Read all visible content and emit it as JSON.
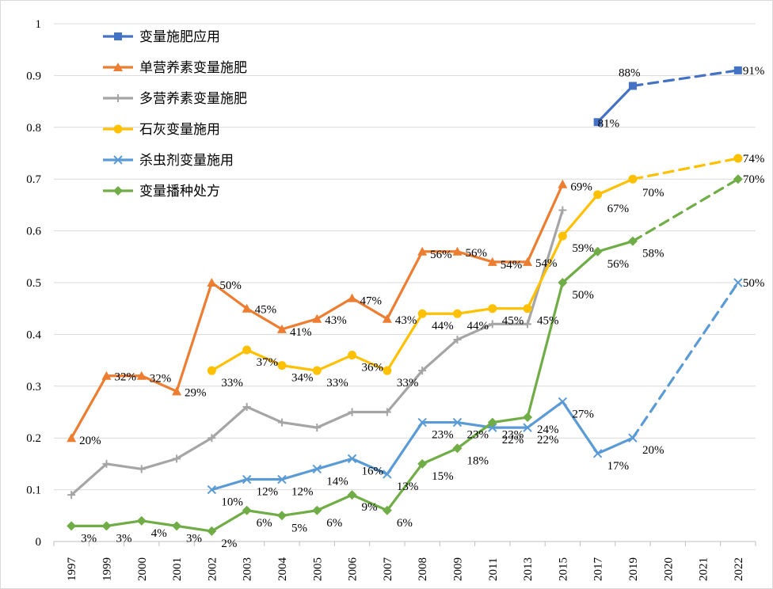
{
  "chart_data": {
    "type": "line",
    "categories": [
      "1997",
      "1999",
      "2000",
      "2001",
      "2002",
      "2003",
      "2004",
      "2005",
      "2006",
      "2007",
      "2008",
      "2009",
      "2011",
      "2013",
      "2015",
      "2017",
      "2019",
      "2020",
      "2021",
      "2022"
    ],
    "ylim": [
      0,
      1
    ],
    "yticks": [
      "0",
      "0.1",
      "0.2",
      "0.3",
      "0.4",
      "0.5",
      "0.6",
      "0.7",
      "0.8",
      "0.9",
      "1"
    ],
    "grid": "horizontal",
    "legend_position": "top-left",
    "series": [
      {
        "name": "变量施肥应用",
        "color": "#4472C4",
        "marker": "square",
        "values": [
          null,
          null,
          null,
          null,
          null,
          null,
          null,
          null,
          null,
          null,
          null,
          null,
          null,
          null,
          null,
          0.81,
          0.88,
          null,
          null,
          0.91
        ],
        "labels": [
          null,
          null,
          null,
          null,
          null,
          null,
          null,
          null,
          null,
          null,
          null,
          null,
          null,
          null,
          null,
          "81%",
          "88%",
          null,
          null,
          "91%"
        ],
        "dashed_from": 16
      },
      {
        "name": "单营养素变量施肥",
        "color": "#ED7D31",
        "marker": "triangle",
        "values": [
          0.2,
          0.32,
          0.32,
          0.29,
          0.5,
          0.45,
          0.41,
          0.43,
          0.47,
          0.43,
          0.56,
          0.56,
          0.54,
          0.54,
          0.69,
          null,
          null,
          null,
          null,
          null
        ],
        "labels": [
          "20%",
          "32%",
          "32%",
          "29%",
          "50%",
          "45%",
          "41%",
          "43%",
          "47%",
          "43%",
          "56%",
          "56%",
          "54%",
          "54%",
          "69%",
          null,
          null,
          null,
          null,
          null
        ],
        "dashed_from": null
      },
      {
        "name": "多营养素变量施肥",
        "color": "#A5A5A5",
        "marker": "plus",
        "values": [
          0.09,
          0.15,
          0.14,
          0.16,
          0.2,
          0.26,
          0.23,
          0.22,
          0.25,
          0.25,
          0.33,
          0.39,
          0.42,
          0.42,
          0.64,
          null,
          null,
          null,
          null,
          null
        ],
        "labels": [
          null,
          null,
          null,
          null,
          null,
          null,
          null,
          null,
          null,
          null,
          null,
          null,
          null,
          null,
          null,
          null,
          null,
          null,
          null,
          null
        ],
        "dashed_from": null
      },
      {
        "name": "石灰变量施用",
        "color": "#FFC000",
        "marker": "circle",
        "values": [
          null,
          null,
          null,
          null,
          0.33,
          0.37,
          0.34,
          0.33,
          0.36,
          0.33,
          0.44,
          0.44,
          0.45,
          0.45,
          0.59,
          0.67,
          0.7,
          null,
          null,
          0.74
        ],
        "labels": [
          null,
          null,
          null,
          null,
          "33%",
          "37%",
          "34%",
          "33%",
          "36%",
          "33%",
          "44%",
          "44%",
          "45%",
          "45%",
          "59%",
          "67%",
          "70%",
          null,
          null,
          "74%"
        ],
        "dashed_from": 16
      },
      {
        "name": "杀虫剂变量施用",
        "color": "#5B9BD5",
        "marker": "x",
        "values": [
          null,
          null,
          null,
          null,
          0.1,
          0.12,
          0.12,
          0.14,
          0.16,
          0.13,
          0.23,
          0.23,
          0.22,
          0.22,
          0.27,
          0.17,
          0.2,
          null,
          null,
          0.5
        ],
        "labels": [
          null,
          null,
          null,
          null,
          "10%",
          "12%",
          "12%",
          "14%",
          "16%",
          "13%",
          "23%",
          "23%",
          "22%",
          "22%",
          "27%",
          "17%",
          "20%",
          null,
          null,
          "50%"
        ],
        "dashed_from": 16
      },
      {
        "name": "变量播种处方",
        "color": "#70AD47",
        "marker": "diamond",
        "values": [
          0.03,
          0.03,
          0.04,
          0.03,
          0.02,
          0.06,
          0.05,
          0.06,
          0.09,
          0.06,
          0.15,
          0.18,
          0.23,
          0.24,
          0.5,
          0.56,
          0.58,
          null,
          null,
          0.7
        ],
        "labels": [
          "3%",
          "3%",
          "4%",
          "3%",
          "2%",
          "6%",
          "5%",
          "6%",
          "9%",
          "6%",
          "15%",
          "18%",
          "23%",
          "24%",
          "50%",
          "56%",
          "58%",
          null,
          null,
          "70%"
        ],
        "dashed_from": 16
      }
    ]
  }
}
